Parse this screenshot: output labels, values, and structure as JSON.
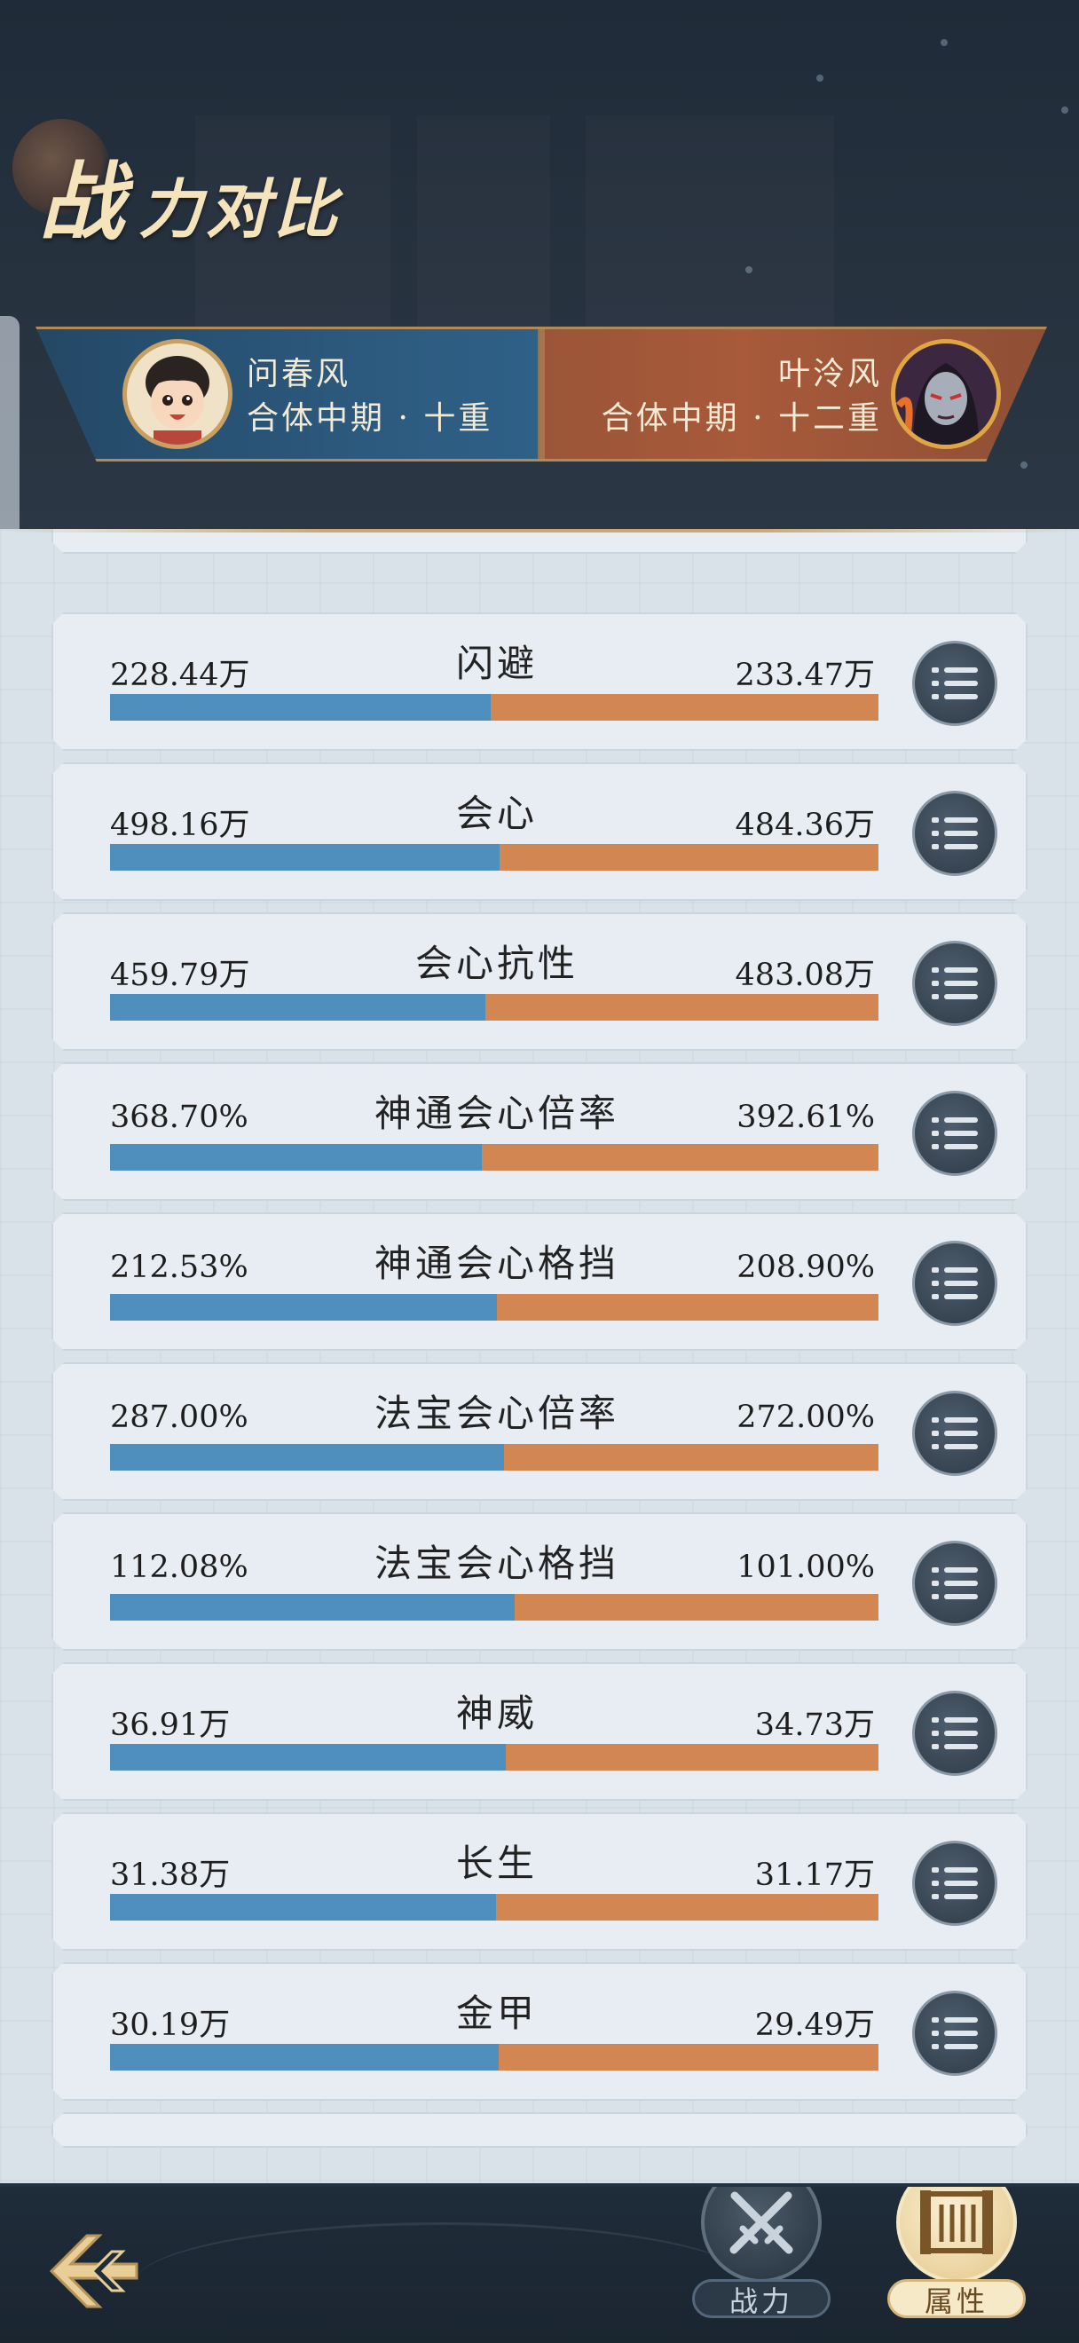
{
  "header": {
    "title_first": "战",
    "title_rest": "力对比"
  },
  "versus": {
    "player1": {
      "name": "问春风",
      "rank": "合体中期 · 十重"
    },
    "player2": {
      "name": "叶泠风",
      "rank": "合体中期 · 十二重"
    }
  },
  "attributes": [
    {
      "label": "闪避",
      "left": "228.44万",
      "right": "233.47万",
      "left_share": 0.495
    },
    {
      "label": "会心",
      "left": "498.16万",
      "right": "484.36万",
      "left_share": 0.507
    },
    {
      "label": "会心抗性",
      "left": "459.79万",
      "right": "483.08万",
      "left_share": 0.488
    },
    {
      "label": "神通会心倍率",
      "left": "368.70%",
      "right": "392.61%",
      "left_share": 0.484
    },
    {
      "label": "神通会心格挡",
      "left": "212.53%",
      "right": "208.90%",
      "left_share": 0.504
    },
    {
      "label": "法宝会心倍率",
      "left": "287.00%",
      "right": "272.00%",
      "left_share": 0.513
    },
    {
      "label": "法宝会心格挡",
      "left": "112.08%",
      "right": "101.00%",
      "left_share": 0.526
    },
    {
      "label": "神威",
      "left": "36.91万",
      "right": "34.73万",
      "left_share": 0.515
    },
    {
      "label": "长生",
      "left": "31.38万",
      "right": "31.17万",
      "left_share": 0.502
    },
    {
      "label": "金甲",
      "left": "30.19万",
      "right": "29.49万",
      "left_share": 0.506
    }
  ],
  "bottom_tabs": {
    "power_label": "战力",
    "attr_label": "属性"
  },
  "colors": {
    "player1_bar": "#4f8fbd",
    "player2_bar": "#d28652",
    "title": "#f4e3bb"
  },
  "icons": {
    "detail": "list-icon",
    "back": "back-arrow-icon",
    "power": "crossed-swords-icon",
    "attr": "scroll-icon"
  }
}
